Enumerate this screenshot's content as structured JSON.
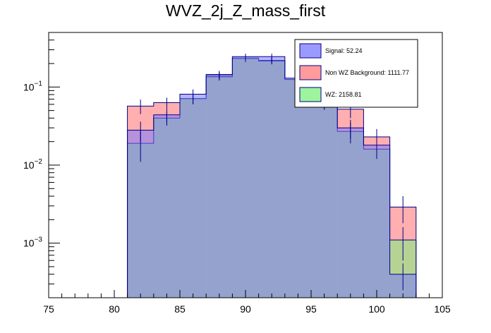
{
  "chart_data": {
    "type": "histogram",
    "title": "WVZ_2j_Z_mass_first",
    "xlabel": "",
    "ylabel": "",
    "xlim": [
      75,
      105
    ],
    "ylog": true,
    "ylim": [
      0.0002,
      0.5
    ],
    "x_ticks": [
      "75",
      "80",
      "85",
      "90",
      "95",
      "100",
      "105"
    ],
    "y_ticks": [
      {
        "value": 0.1,
        "mantissa": "10",
        "exp": "−1"
      },
      {
        "value": 0.01,
        "mantissa": "10",
        "exp": "−2"
      },
      {
        "value": 0.001,
        "mantissa": "10",
        "exp": "−3"
      }
    ],
    "bin_edges": [
      75,
      77,
      79,
      81,
      83,
      85,
      87,
      89,
      91,
      93,
      95,
      97,
      99,
      101,
      103,
      105
    ],
    "series": [
      {
        "name": "Non WZ Background",
        "legend": "Non WZ Background: 1111.77",
        "color": "#ff7a7a",
        "values": [
          0,
          0,
          0,
          0.057,
          0.063,
          0.071,
          0.14,
          0.23,
          0.22,
          0.125,
          0.062,
          0.052,
          0.023,
          0.0029,
          0
        ],
        "errors": [
          0,
          0,
          0,
          0.012,
          0.01,
          0.011,
          0.015,
          0.02,
          0.02,
          0.015,
          0.01,
          0.012,
          0.006,
          0.0011,
          0
        ]
      },
      {
        "name": "WZ",
        "legend": "WZ: 2158.81",
        "color": "#7cf07c",
        "values": [
          0,
          0,
          0,
          0.019,
          0.04,
          0.071,
          0.135,
          0.235,
          0.215,
          0.125,
          0.065,
          0.027,
          0.016,
          0.0011,
          0
        ],
        "errors": [
          0,
          0,
          0,
          0.008,
          0.008,
          0.01,
          0.014,
          0.02,
          0.02,
          0.014,
          0.01,
          0.008,
          0.004,
          0.0005,
          0
        ]
      },
      {
        "name": "Signal",
        "legend": "Signal: 52.24",
        "color": "#7a7aff",
        "values": [
          0,
          0,
          0,
          0.028,
          0.044,
          0.081,
          0.145,
          0.245,
          0.245,
          0.13,
          0.062,
          0.03,
          0.018,
          0.0004,
          0
        ],
        "errors": [
          0,
          0,
          0,
          0.008,
          0.009,
          0.012,
          0.016,
          0.022,
          0.022,
          0.016,
          0.011,
          0.008,
          0.005,
          0.00015,
          0
        ]
      }
    ],
    "legend_order": [
      "Signal",
      "Non WZ Background",
      "WZ"
    ],
    "legend_position": "top-right"
  }
}
